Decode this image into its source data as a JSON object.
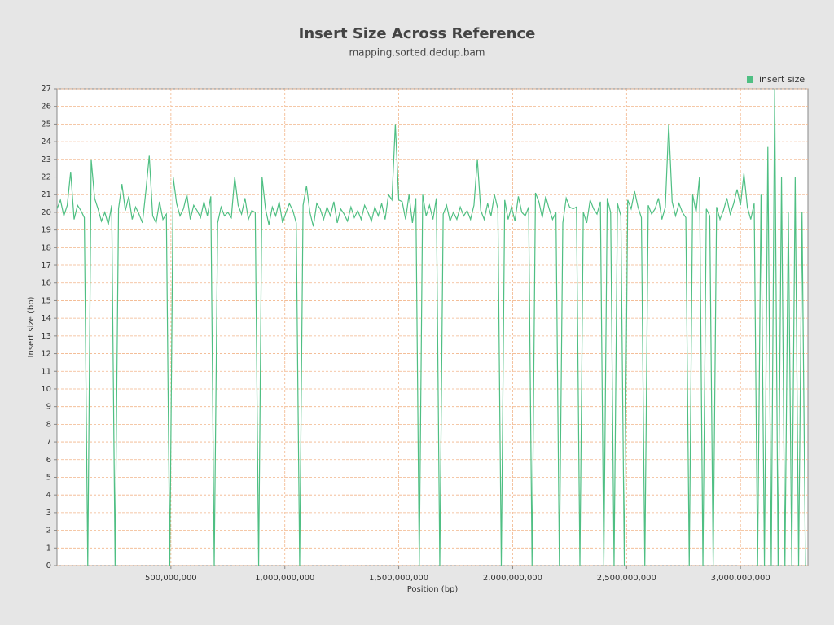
{
  "chart_data": {
    "type": "line",
    "title": "Insert Size Across Reference",
    "subtitle": "mapping.sorted.dedup.bam",
    "x_label": "Position (bp)",
    "y_label": "Insert size (bp)",
    "legend": "top-right",
    "grid": true,
    "xlim": [
      0,
      3296000000
    ],
    "ylim": [
      0,
      27
    ],
    "xticks": [
      {
        "value": 500000000,
        "label": "500,000,000"
      },
      {
        "value": 1000000000,
        "label": "1,000,000,000"
      },
      {
        "value": 1500000000,
        "label": "1,500,000,000"
      },
      {
        "value": 2000000000,
        "label": "2,000,000,000"
      },
      {
        "value": 2500000000,
        "label": "2,500,000,000"
      },
      {
        "value": 3000000000,
        "label": "3,000,000,000"
      }
    ],
    "yticks": [
      0,
      1,
      2,
      3,
      4,
      5,
      6,
      7,
      8,
      9,
      10,
      11,
      12,
      13,
      14,
      15,
      16,
      17,
      18,
      19,
      20,
      21,
      22,
      23,
      24,
      25,
      26,
      27
    ],
    "x": [
      0,
      15000000,
      30000000,
      45000000,
      60000000,
      75000000,
      90000000,
      105000000,
      120000000,
      135000000,
      150000000,
      165000000,
      180000000,
      195000000,
      210000000,
      225000000,
      240000000,
      255000000,
      270000000,
      285000000,
      300000000,
      315000000,
      330000000,
      345000000,
      360000000,
      375000000,
      390000000,
      405000000,
      420000000,
      435000000,
      450000000,
      465000000,
      480000000,
      495000000,
      510000000,
      525000000,
      540000000,
      555000000,
      570000000,
      585000000,
      600000000,
      615000000,
      630000000,
      645000000,
      660000000,
      675000000,
      690000000,
      705000000,
      720000000,
      735000000,
      750000000,
      765000000,
      780000000,
      795000000,
      810000000,
      825000000,
      840000000,
      855000000,
      870000000,
      885000000,
      900000000,
      915000000,
      930000000,
      945000000,
      960000000,
      975000000,
      990000000,
      1005000000,
      1020000000,
      1035000000,
      1050000000,
      1065000000,
      1080000000,
      1095000000,
      1110000000,
      1125000000,
      1140000000,
      1155000000,
      1170000000,
      1185000000,
      1200000000,
      1215000000,
      1230000000,
      1245000000,
      1260000000,
      1275000000,
      1290000000,
      1305000000,
      1320000000,
      1335000000,
      1350000000,
      1365000000,
      1380000000,
      1395000000,
      1410000000,
      1425000000,
      1440000000,
      1455000000,
      1470000000,
      1485000000,
      1500000000,
      1515000000,
      1530000000,
      1545000000,
      1560000000,
      1575000000,
      1590000000,
      1605000000,
      1620000000,
      1635000000,
      1650000000,
      1665000000,
      1680000000,
      1695000000,
      1710000000,
      1725000000,
      1740000000,
      1755000000,
      1770000000,
      1785000000,
      1800000000,
      1815000000,
      1830000000,
      1845000000,
      1860000000,
      1875000000,
      1890000000,
      1905000000,
      1920000000,
      1935000000,
      1950000000,
      1965000000,
      1980000000,
      1995000000,
      2010000000,
      2025000000,
      2040000000,
      2055000000,
      2070000000,
      2085000000,
      2100000000,
      2115000000,
      2130000000,
      2145000000,
      2160000000,
      2175000000,
      2190000000,
      2205000000,
      2220000000,
      2235000000,
      2250000000,
      2265000000,
      2280000000,
      2295000000,
      2310000000,
      2325000000,
      2340000000,
      2355000000,
      2370000000,
      2385000000,
      2400000000,
      2415000000,
      2430000000,
      2445000000,
      2460000000,
      2475000000,
      2490000000,
      2505000000,
      2520000000,
      2535000000,
      2550000000,
      2565000000,
      2580000000,
      2595000000,
      2610000000,
      2625000000,
      2640000000,
      2655000000,
      2670000000,
      2685000000,
      2700000000,
      2715000000,
      2730000000,
      2745000000,
      2760000000,
      2775000000,
      2790000000,
      2805000000,
      2820000000,
      2835000000,
      2850000000,
      2865000000,
      2880000000,
      2895000000,
      2910000000,
      2925000000,
      2940000000,
      2955000000,
      2970000000,
      2985000000,
      3000000000,
      3015000000,
      3030000000,
      3045000000,
      3060000000,
      3075000000,
      3090000000,
      3105000000,
      3120000000,
      3135000000,
      3150000000,
      3165000000,
      3180000000,
      3195000000,
      3210000000,
      3225000000,
      3240000000,
      3255000000,
      3270000000,
      3285000000
    ],
    "series": [
      {
        "name": "insert size",
        "color": "#4fbf83",
        "values": [
          20.2,
          20.7,
          19.8,
          20.4,
          22.3,
          19.6,
          20.4,
          20.1,
          19.7,
          0,
          23,
          20.8,
          20.2,
          19.5,
          20.0,
          19.3,
          20.4,
          0,
          20.2,
          21.6,
          20.1,
          20.9,
          19.6,
          20.3,
          19.9,
          19.4,
          21.2,
          23.2,
          19.8,
          19.4,
          20.6,
          19.6,
          19.9,
          0,
          22.0,
          20.5,
          19.8,
          20.2,
          21.0,
          19.6,
          20.4,
          20.1,
          19.7,
          20.6,
          19.8,
          20.9,
          0,
          19.4,
          20.3,
          19.8,
          20.0,
          19.7,
          22.0,
          20.4,
          19.9,
          20.8,
          19.6,
          20.1,
          20.0,
          0,
          22.0,
          20.2,
          19.3,
          20.3,
          19.8,
          20.6,
          19.4,
          20.0,
          20.5,
          20.1,
          19.4,
          0,
          20.4,
          21.5,
          20.0,
          19.2,
          20.5,
          20.2,
          19.6,
          20.3,
          19.8,
          20.6,
          19.4,
          20.2,
          19.9,
          19.5,
          20.3,
          19.7,
          20.1,
          19.6,
          20.4,
          20.0,
          19.5,
          20.3,
          19.8,
          20.5,
          19.6,
          21.0,
          20.7,
          25,
          20.7,
          20.6,
          19.6,
          21.0,
          19.4,
          20.8,
          0,
          21.0,
          19.8,
          20.4,
          19.6,
          20.8,
          0,
          19.9,
          20.4,
          19.5,
          20.0,
          19.6,
          20.3,
          19.8,
          20.1,
          19.6,
          20.4,
          23.0,
          20.1,
          19.6,
          20.5,
          19.8,
          21.0,
          20.2,
          0,
          20.7,
          19.6,
          20.3,
          19.5,
          20.9,
          20.0,
          19.8,
          20.3,
          0,
          21.1,
          20.6,
          19.7,
          20.9,
          20.2,
          19.6,
          20.0,
          0,
          19.4,
          20.8,
          20.3,
          20.2,
          20.3,
          0,
          20.0,
          19.4,
          20.7,
          20.2,
          19.9,
          20.6,
          0,
          20.8,
          20.0,
          0,
          20.5,
          19.8,
          0,
          20.7,
          20.2,
          21.2,
          20.3,
          19.7,
          0,
          20.4,
          19.9,
          20.2,
          20.8,
          19.6,
          20.3,
          25,
          20.6,
          19.8,
          20.5,
          20.0,
          19.7,
          0,
          21.0,
          20.0,
          22.0,
          0,
          20.2,
          19.8,
          0,
          20.3,
          19.6,
          20.1,
          20.8,
          19.9,
          20.5,
          21.3,
          20.4,
          22.2,
          20.3,
          19.6,
          20.5,
          0,
          21,
          0,
          23.7,
          0,
          27,
          0,
          22,
          0,
          20,
          0,
          22,
          0,
          20,
          0
        ]
      }
    ]
  }
}
